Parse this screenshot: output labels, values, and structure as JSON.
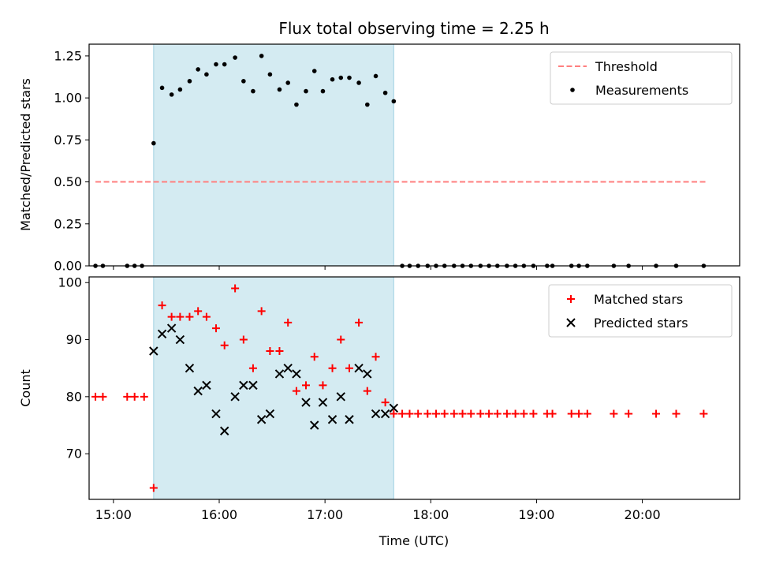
{
  "chart_data": [
    {
      "type": "scatter",
      "title": "Flux total observing time = 2.25 h",
      "xlabel": "",
      "ylabel": "Matched/Predicted stars",
      "ylim": [
        0,
        1.32
      ],
      "yticks": [
        0,
        0.25,
        0.5,
        0.75,
        1.0,
        1.25
      ],
      "ytick_labels": [
        "0.00",
        "0.25",
        "0.50",
        "0.75",
        "1.00",
        "1.25"
      ],
      "x_unit": "decimal hours UTC",
      "xlim": [
        14.77,
        20.92
      ],
      "shaded_span": [
        15.38,
        17.65
      ],
      "shade_color": "#add8e6",
      "legend": {
        "loc": "upper right",
        "entries": [
          "Threshold",
          "Measurements"
        ]
      },
      "series": [
        {
          "name": "Threshold",
          "style": "dashed-line",
          "color": "#ff7f7f",
          "x": [
            14.83,
            20.6
          ],
          "y": [
            0.5,
            0.5
          ]
        },
        {
          "name": "Measurements",
          "style": "dot",
          "color": "#000000",
          "x": [
            14.83,
            14.9,
            15.13,
            15.2,
            15.27,
            15.38,
            15.46,
            15.55,
            15.63,
            15.72,
            15.8,
            15.88,
            15.97,
            16.05,
            16.15,
            16.23,
            16.32,
            16.4,
            16.48,
            16.57,
            16.65,
            16.73,
            16.82,
            16.9,
            16.98,
            17.07,
            17.15,
            17.23,
            17.32,
            17.4,
            17.48,
            17.57,
            17.65,
            17.73,
            17.8,
            17.88,
            17.97,
            18.05,
            18.13,
            18.22,
            18.3,
            18.38,
            18.47,
            18.55,
            18.63,
            18.72,
            18.8,
            18.88,
            18.97,
            19.1,
            19.15,
            19.33,
            19.4,
            19.48,
            19.73,
            19.87,
            20.13,
            20.32,
            20.58
          ],
          "y": [
            0,
            0,
            0,
            0,
            0,
            0.73,
            1.06,
            1.02,
            1.05,
            1.1,
            1.17,
            1.14,
            1.2,
            1.2,
            1.24,
            1.1,
            1.04,
            1.25,
            1.14,
            1.05,
            1.09,
            0.96,
            1.04,
            1.16,
            1.04,
            1.11,
            1.12,
            1.12,
            1.09,
            0.96,
            1.13,
            1.03,
            0.98,
            0,
            0,
            0,
            0,
            0,
            0,
            0,
            0,
            0,
            0,
            0,
            0,
            0,
            0,
            0,
            0,
            0,
            0,
            0,
            0,
            0,
            0,
            0,
            0,
            0,
            0
          ]
        }
      ]
    },
    {
      "type": "scatter",
      "title": "",
      "xlabel": "Time (UTC)",
      "ylabel": "Count",
      "ylim": [
        62,
        101
      ],
      "yticks": [
        70,
        80,
        90,
        100
      ],
      "ytick_labels": [
        "70",
        "80",
        "90",
        "100"
      ],
      "x_unit": "decimal hours UTC",
      "xlim": [
        14.77,
        20.92
      ],
      "xticks": [
        15,
        16,
        17,
        18,
        19,
        20
      ],
      "xtick_labels": [
        "15:00",
        "16:00",
        "17:00",
        "18:00",
        "19:00",
        "20:00"
      ],
      "shaded_span": [
        15.38,
        17.65
      ],
      "shade_color": "#add8e6",
      "legend": {
        "loc": "upper right",
        "entries": [
          "Matched stars",
          "Predicted stars"
        ]
      },
      "series": [
        {
          "name": "Matched stars",
          "marker": "plus",
          "color": "#ff0000",
          "x": [
            14.83,
            14.9,
            15.13,
            15.2,
            15.29,
            15.38,
            15.46,
            15.55,
            15.63,
            15.72,
            15.8,
            15.88,
            15.97,
            16.05,
            16.15,
            16.23,
            16.32,
            16.4,
            16.48,
            16.57,
            16.65,
            16.73,
            16.82,
            16.9,
            16.98,
            17.07,
            17.15,
            17.23,
            17.32,
            17.4,
            17.48,
            17.57,
            17.65,
            17.73,
            17.8,
            17.88,
            17.97,
            18.05,
            18.13,
            18.22,
            18.3,
            18.38,
            18.47,
            18.55,
            18.63,
            18.72,
            18.8,
            18.88,
            18.97,
            19.1,
            19.15,
            19.33,
            19.4,
            19.48,
            19.73,
            19.87,
            20.13,
            20.32,
            20.58
          ],
          "y": [
            80,
            80,
            80,
            80,
            80,
            64,
            96,
            94,
            94,
            94,
            95,
            94,
            92,
            89,
            99,
            90,
            85,
            95,
            88,
            88,
            93,
            81,
            82,
            87,
            82,
            85,
            90,
            85,
            93,
            81,
            87,
            79,
            77,
            77,
            77,
            77,
            77,
            77,
            77,
            77,
            77,
            77,
            77,
            77,
            77,
            77,
            77,
            77,
            77,
            77,
            77,
            77,
            77,
            77,
            77,
            77,
            77,
            77,
            77
          ]
        },
        {
          "name": "Predicted stars",
          "marker": "x",
          "color": "#000000",
          "x": [
            15.38,
            15.46,
            15.55,
            15.63,
            15.72,
            15.8,
            15.88,
            15.97,
            16.05,
            16.15,
            16.23,
            16.32,
            16.4,
            16.48,
            16.57,
            16.65,
            16.73,
            16.82,
            16.9,
            16.98,
            17.07,
            17.15,
            17.23,
            17.32,
            17.4,
            17.48,
            17.57,
            17.65
          ],
          "y": [
            88,
            91,
            92,
            90,
            85,
            81,
            82,
            77,
            74,
            80,
            82,
            82,
            76,
            77,
            84,
            85,
            84,
            79,
            75,
            79,
            76,
            80,
            76,
            85,
            84,
            77,
            77,
            78
          ]
        }
      ]
    }
  ]
}
